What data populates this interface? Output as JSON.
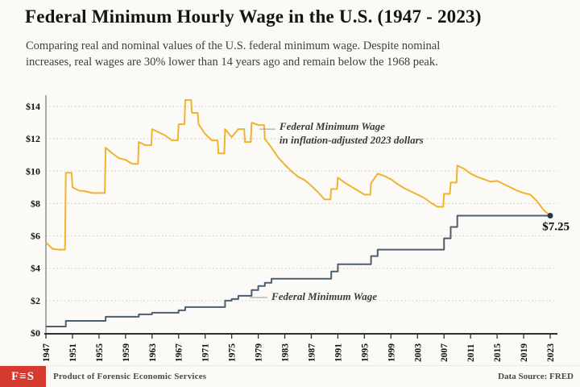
{
  "header": {
    "title": "Federal Minimum Hourly Wage in the U.S. (1947 - 2023)",
    "subtitle_line1": "Comparing real and nominal values of the U.S. federal minimum wage. Despite nominal",
    "subtitle_line2": "increases, real wages are 30% lower than 14 years ago and remain below the 1968 peak."
  },
  "footer": {
    "logo": "F≡S",
    "credit": "Product of Forensic Economic Services",
    "source": "Data Source: FRED"
  },
  "colors": {
    "background": "#fbfaf6",
    "real_line": "#f0b330",
    "nominal_line": "#4c5f72",
    "end_dot": "#26364e",
    "logo_red": "#d63a2f"
  },
  "chart_data": {
    "type": "line",
    "title": "Federal Minimum Hourly Wage in the U.S. (1947 - 2023)",
    "xlabel": "",
    "ylabel": "",
    "xlim": [
      1947,
      2023
    ],
    "ylim": [
      0,
      14.7
    ],
    "grid": "horizontal-dotted",
    "legend_position": "inline-annotations",
    "years": [
      1947,
      1948,
      1949,
      1950,
      1951,
      1952,
      1953,
      1954,
      1955,
      1956,
      1957,
      1958,
      1959,
      1960,
      1961,
      1962,
      1963,
      1964,
      1965,
      1966,
      1967,
      1968,
      1969,
      1970,
      1971,
      1972,
      1973,
      1974,
      1975,
      1976,
      1977,
      1978,
      1979,
      1980,
      1981,
      1982,
      1983,
      1984,
      1985,
      1986,
      1987,
      1988,
      1989,
      1990,
      1991,
      1992,
      1993,
      1994,
      1995,
      1996,
      1997,
      1998,
      1999,
      2000,
      2001,
      2002,
      2003,
      2004,
      2005,
      2006,
      2007,
      2008,
      2009,
      2010,
      2011,
      2012,
      2013,
      2014,
      2015,
      2016,
      2017,
      2018,
      2019,
      2020,
      2021,
      2022,
      2023
    ],
    "series": [
      {
        "name": "Federal Minimum Wage in inflation-adjusted 2023 dollars",
        "color": "#f0b330",
        "style": "line",
        "values": [
          5.6,
          5.2,
          5.15,
          9.9,
          9.0,
          8.8,
          8.75,
          8.65,
          8.65,
          11.45,
          11.1,
          10.8,
          10.7,
          10.45,
          11.8,
          11.6,
          12.6,
          12.4,
          12.2,
          11.9,
          12.9,
          14.4,
          13.6,
          12.9,
          12.3,
          11.9,
          11.1,
          12.6,
          12.1,
          12.6,
          11.8,
          13.0,
          12.85,
          12.0,
          11.45,
          10.85,
          10.4,
          10.0,
          9.65,
          9.45,
          9.1,
          8.7,
          8.25,
          8.9,
          9.6,
          9.3,
          9.05,
          8.8,
          8.55,
          9.25,
          9.85,
          9.7,
          9.5,
          9.2,
          8.95,
          8.75,
          8.55,
          8.35,
          8.05,
          7.8,
          8.6,
          9.3,
          10.35,
          10.15,
          9.85,
          9.65,
          9.5,
          9.35,
          9.4,
          9.2,
          9.0,
          8.8,
          8.65,
          8.55,
          8.15,
          7.6,
          7.25
        ]
      },
      {
        "name": "Federal Minimum Wage",
        "color": "#4c5f72",
        "style": "step",
        "values": [
          0.4,
          0.4,
          0.4,
          0.75,
          0.75,
          0.75,
          0.75,
          0.75,
          0.75,
          1.0,
          1.0,
          1.0,
          1.0,
          1.0,
          1.15,
          1.15,
          1.25,
          1.25,
          1.25,
          1.25,
          1.4,
          1.6,
          1.6,
          1.6,
          1.6,
          1.6,
          1.6,
          2.0,
          2.1,
          2.3,
          2.3,
          2.65,
          2.9,
          3.1,
          3.35,
          3.35,
          3.35,
          3.35,
          3.35,
          3.35,
          3.35,
          3.35,
          3.35,
          3.8,
          4.25,
          4.25,
          4.25,
          4.25,
          4.25,
          4.75,
          5.15,
          5.15,
          5.15,
          5.15,
          5.15,
          5.15,
          5.15,
          5.15,
          5.15,
          5.15,
          5.85,
          6.55,
          7.25,
          7.25,
          7.25,
          7.25,
          7.25,
          7.25,
          7.25,
          7.25,
          7.25,
          7.25,
          7.25,
          7.25,
          7.25,
          7.25,
          7.25
        ]
      }
    ],
    "yticks": [
      0,
      2,
      4,
      6,
      8,
      10,
      12,
      14
    ],
    "ytick_labels": [
      "$0",
      "$2",
      "$4",
      "$6",
      "$8",
      "$10",
      "$12",
      "$14"
    ],
    "xticks": [
      1947,
      1951,
      1955,
      1959,
      1963,
      1967,
      1971,
      1975,
      1979,
      1983,
      1987,
      1991,
      1995,
      1999,
      2003,
      2007,
      2011,
      2015,
      2019,
      2023
    ],
    "annotations": [
      {
        "id": "real-label",
        "lines": [
          "Federal Minimum Wage",
          "in inflation-adjusted 2023 dollars"
        ],
        "attach_year": 1979.2,
        "attach_value": 12.6,
        "text_year": 1982.2,
        "text_value": 12.55
      },
      {
        "id": "nominal-label",
        "lines": [
          "Federal Minimum Wage"
        ],
        "attach_year": 1977.7,
        "attach_value": 2.19,
        "text_year": 1981.0,
        "text_value": 2.04
      }
    ],
    "end_annotation": {
      "label": "$7.25",
      "year": 2023,
      "value": 7.25
    }
  }
}
